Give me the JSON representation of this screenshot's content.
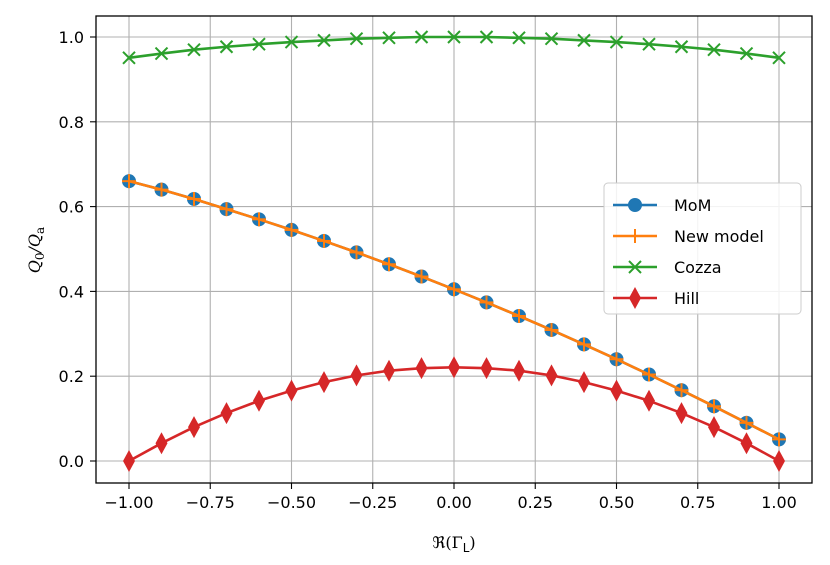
{
  "chart_data": {
    "type": "line",
    "title": "",
    "xlabel": "ℜ(Γ_L)",
    "ylabel": "Q_0/Q_a",
    "xlim": [
      -1.1,
      1.1
    ],
    "ylim": [
      -0.05,
      1.05
    ],
    "grid": true,
    "legend_position": "center right",
    "x_ticks": [
      -1.0,
      -0.75,
      -0.5,
      -0.25,
      0.0,
      0.25,
      0.5,
      0.75,
      1.0
    ],
    "x_tick_labels": [
      "−1.00",
      "−0.75",
      "−0.50",
      "−0.25",
      "0.00",
      "0.25",
      "0.50",
      "0.75",
      "1.00"
    ],
    "y_ticks": [
      0.0,
      0.2,
      0.4,
      0.6,
      0.8,
      1.0
    ],
    "y_tick_labels": [
      "0.0",
      "0.2",
      "0.4",
      "0.6",
      "0.8",
      "1.0"
    ],
    "x": [
      -1.0,
      -0.9,
      -0.8,
      -0.7,
      -0.6,
      -0.5,
      -0.4,
      -0.3,
      -0.2,
      -0.1,
      0.0,
      0.1,
      0.2,
      0.3,
      0.4,
      0.5,
      0.6,
      0.7,
      0.8,
      0.9,
      1.0
    ],
    "series": [
      {
        "name": "MoM",
        "color": "#1f77b4",
        "marker": "circle",
        "values": [
          0.66,
          0.64,
          0.618,
          0.594,
          0.57,
          0.545,
          0.519,
          0.492,
          0.464,
          0.435,
          0.405,
          0.374,
          0.342,
          0.309,
          0.275,
          0.24,
          0.204,
          0.167,
          0.129,
          0.09,
          0.051
        ]
      },
      {
        "name": "New model",
        "color": "#ff7f0e",
        "marker": "plus",
        "values": [
          0.66,
          0.64,
          0.618,
          0.594,
          0.57,
          0.545,
          0.519,
          0.492,
          0.464,
          0.435,
          0.405,
          0.374,
          0.342,
          0.309,
          0.275,
          0.24,
          0.204,
          0.167,
          0.129,
          0.09,
          0.051
        ]
      },
      {
        "name": "Cozza",
        "color": "#2ca02c",
        "marker": "x",
        "values": [
          0.951,
          0.961,
          0.97,
          0.977,
          0.983,
          0.988,
          0.992,
          0.996,
          0.998,
          1.0,
          1.0,
          1.0,
          0.998,
          0.996,
          0.992,
          0.988,
          0.983,
          0.977,
          0.97,
          0.961,
          0.951
        ]
      },
      {
        "name": "Hill",
        "color": "#d62728",
        "marker": "diamond",
        "values": [
          0.0,
          0.042,
          0.08,
          0.113,
          0.142,
          0.166,
          0.186,
          0.202,
          0.213,
          0.219,
          0.221,
          0.219,
          0.213,
          0.202,
          0.186,
          0.166,
          0.142,
          0.113,
          0.08,
          0.042,
          0.0
        ]
      }
    ]
  },
  "labels": {
    "xlabel_prefix": "ℜ(Γ",
    "xlabel_sub": "L",
    "xlabel_suffix": ")",
    "ylabel_q": "Q",
    "ylabel_sub0": "0",
    "ylabel_slash": "/Q",
    "ylabel_suba": "a"
  },
  "legend": {
    "items": [
      "MoM",
      "New model",
      "Cozza",
      "Hill"
    ]
  }
}
